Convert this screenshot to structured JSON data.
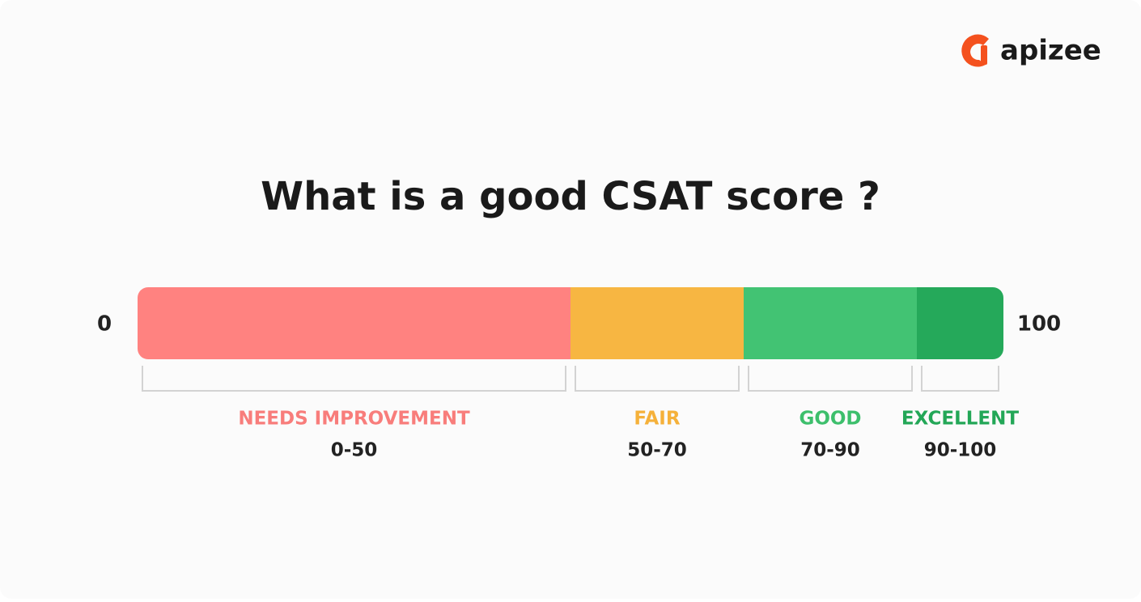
{
  "logo": "apizee",
  "title": "What is a good CSAT score ?",
  "scale": {
    "min": 0,
    "max": 100
  },
  "segments": [
    {
      "label": "NEEDS IMPROVEMENT",
      "range": "0-50",
      "from": 0,
      "to": 50,
      "color": "#ff8280",
      "text_color": "#f87d7b"
    },
    {
      "label": "FAIR",
      "range": "50-70",
      "from": 50,
      "to": 70,
      "color": "#f7b642",
      "text_color": "#f5b13a"
    },
    {
      "label": "GOOD",
      "range": "70-90",
      "from": 70,
      "to": 90,
      "color": "#42c373",
      "text_color": "#3dbf6c"
    },
    {
      "label": "EXCELLENT",
      "range": "90-100",
      "from": 90,
      "to": 100,
      "color": "#25a95a",
      "text_color": "#23a757"
    }
  ]
}
